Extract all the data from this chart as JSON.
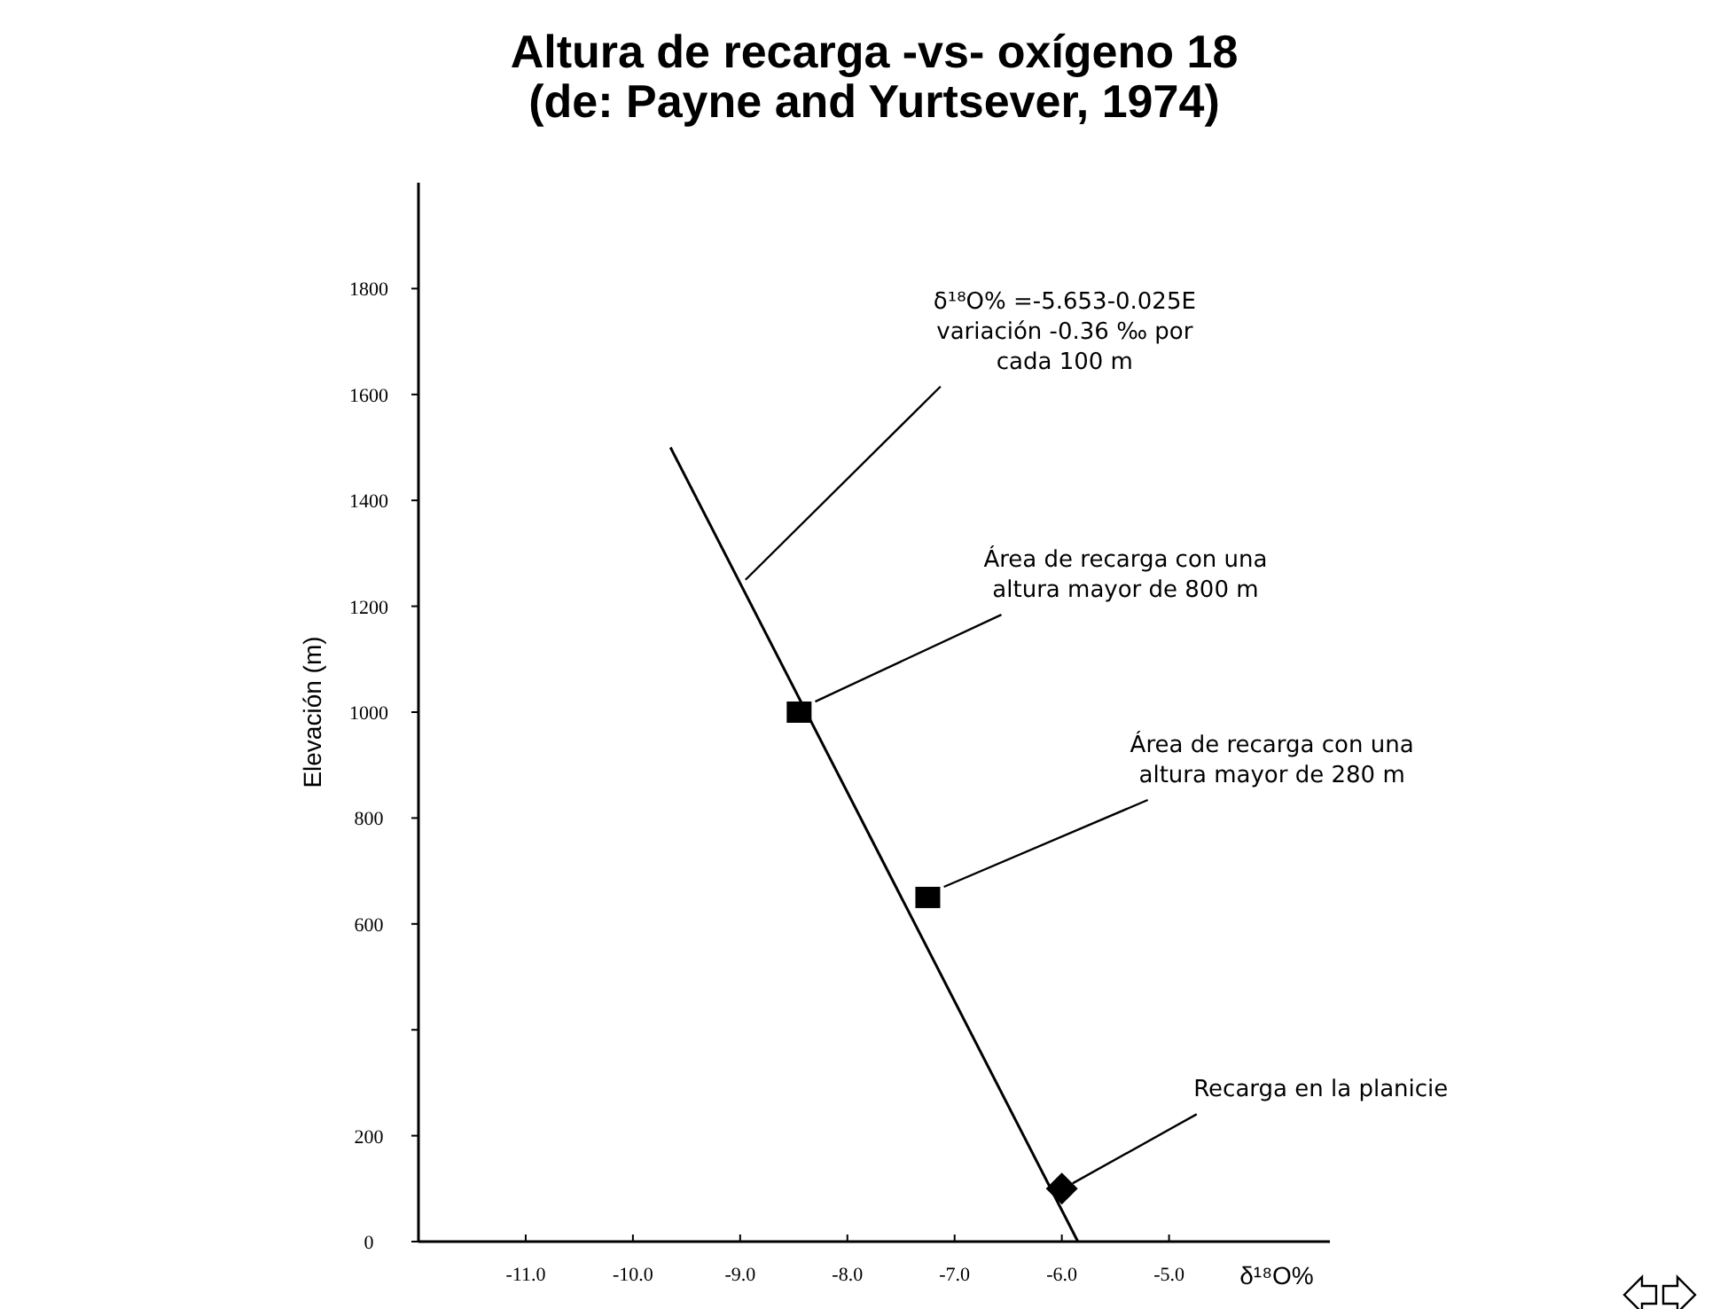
{
  "chart_data": {
    "type": "scatter",
    "title": "Altura de recarga -vs- oxígeno 18\n(de: Payne and Yurtsever, 1974)",
    "xlabel": "δ¹⁸O%",
    "ylabel": "Elevación (m)",
    "xlim": [
      -12,
      -3.5
    ],
    "xticks": [
      {
        "value": -11,
        "label": "-11.0"
      },
      {
        "value": -10,
        "label": "-10.0"
      },
      {
        "value": -9,
        "label": "-9.0"
      },
      {
        "value": -8,
        "label": "-8.0"
      },
      {
        "value": -7,
        "label": "-7.0"
      },
      {
        "value": -6,
        "label": "-6.0"
      },
      {
        "value": -5,
        "label": "-5.0"
      }
    ],
    "ylim": [
      0,
      2000
    ],
    "yticks": [
      0,
      200,
      {
        "value": 400,
        "label": null
      },
      600,
      800,
      1000,
      1200,
      1400,
      1600,
      1800
    ],
    "grid": false,
    "series": [
      {
        "type": "line",
        "color": "#000000",
        "x": [
          -9.65,
          -5.85
        ],
        "values": [
          1500,
          0
        ],
        "marker": "none",
        "line_style": "solid"
      },
      {
        "color": "#000000",
        "x": [
          -8.45,
          -7.25
        ],
        "values": [
          1000,
          650
        ],
        "marker": "square"
      },
      {
        "color": "#000000",
        "x": [
          -6.0
        ],
        "values": [
          100
        ],
        "marker": "diamond"
      }
    ],
    "annotations": [
      {
        "text": "δ¹⁸O% =-5.653-0.025E\nvariación -0.36 ‰ por\ncada 100 m",
        "x": -8.95,
        "y": 1250
      },
      {
        "text": "Área de recarga con una\naltura mayor de 800 m",
        "x": -8.3,
        "y": 1020
      },
      {
        "text": "Área de recarga con una\naltura mayor de 280 m",
        "x": -7.1,
        "y": 670
      },
      {
        "text": "Recarga en la planicie",
        "x": -5.9,
        "y": 110
      }
    ]
  }
}
